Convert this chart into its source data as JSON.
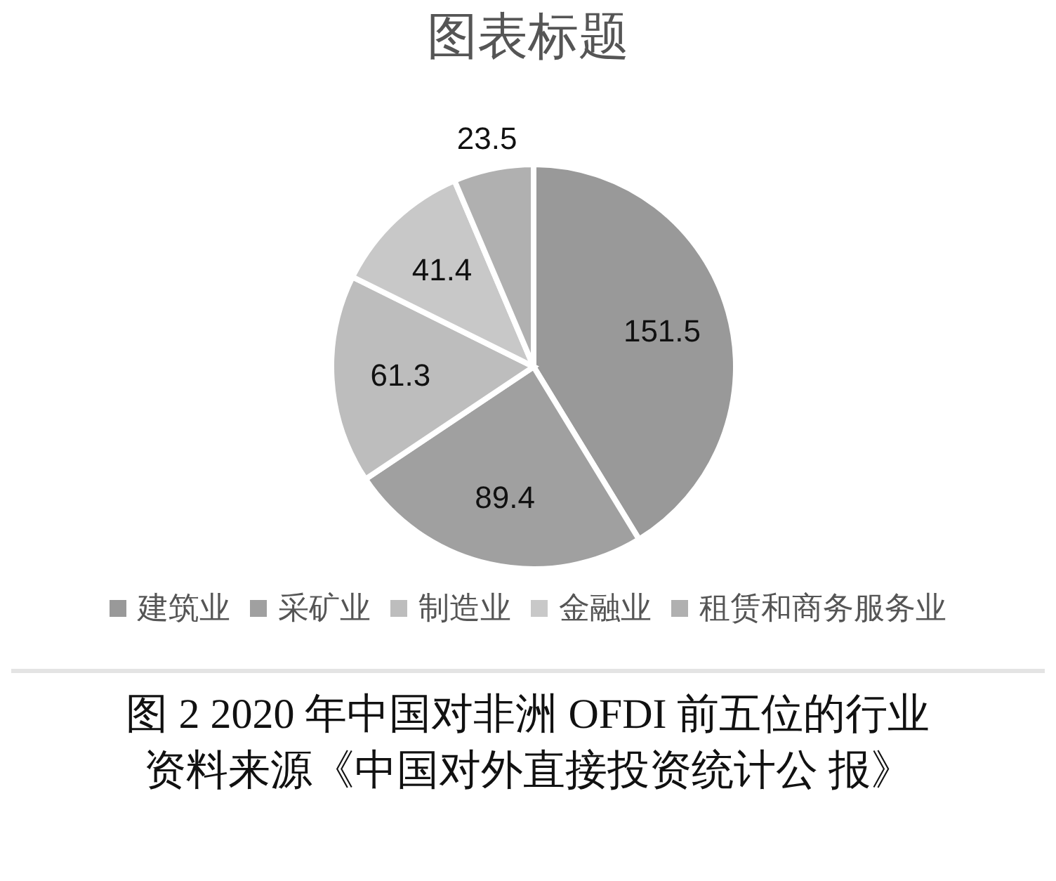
{
  "chart_data": {
    "type": "pie",
    "title": "图表标题",
    "categories": [
      "建筑业",
      "采矿业",
      "制造业",
      "金融业",
      "租赁和商务服务业"
    ],
    "values": [
      151.5,
      89.4,
      61.3,
      41.4,
      23.5
    ],
    "colors": [
      "#999999",
      "#a0a0a0",
      "#bdbdbd",
      "#c8c8c8",
      "#b0b0b0"
    ],
    "data_labels": true,
    "legend": "bottom",
    "annotations": [
      "图 2 2020 年中国对非洲 OFDI 前五位的行业",
      "资料来源《中国对外直接投资统计公 报》"
    ]
  }
}
